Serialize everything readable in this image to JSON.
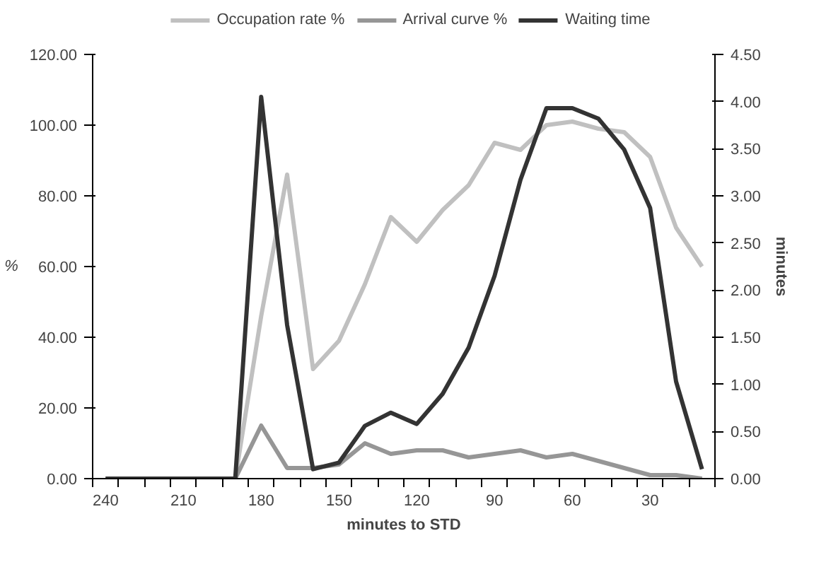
{
  "chart_data": {
    "type": "line",
    "xlabel": "minutes to STD",
    "ylabel": "%",
    "y2label": "minutes",
    "categories": [
      "240",
      null,
      null,
      "210",
      null,
      null,
      "180",
      null,
      null,
      "150",
      null,
      null,
      "120",
      null,
      null,
      "90",
      null,
      null,
      "60",
      null,
      null,
      "30",
      null,
      null
    ],
    "series": [
      {
        "name": "Occupation rate %",
        "color": "#c0c0c0",
        "values": [
          0,
          0,
          0,
          0,
          0,
          0,
          46,
          86,
          31,
          39,
          55,
          74,
          67,
          76,
          83,
          95,
          93,
          100,
          101,
          99,
          98,
          91,
          71,
          60
        ]
      },
      {
        "name": "Arrival curve %",
        "color": "#969696",
        "values": [
          0,
          0,
          0,
          0,
          0,
          0,
          15,
          3,
          3,
          4,
          10,
          7,
          8,
          8,
          6,
          7,
          8,
          6,
          7,
          5,
          3,
          1,
          1,
          0
        ]
      },
      {
        "name": "Waiting time",
        "color": "#333333",
        "axis": "y2",
        "values": [
          0,
          0,
          0,
          0,
          0,
          0,
          4.05,
          1.63,
          0.1,
          0.17,
          0.56,
          0.7,
          0.58,
          0.9,
          1.39,
          2.15,
          3.17,
          3.93,
          3.93,
          3.82,
          3.49,
          2.87,
          1.03,
          0.1
        ]
      }
    ],
    "ylim": [
      0,
      120
    ],
    "yticks": [
      {
        "value": 0,
        "label": "0.00"
      },
      {
        "value": 20,
        "label": "20.00"
      },
      {
        "value": 40,
        "label": "40.00"
      },
      {
        "value": 60,
        "label": "60.00"
      },
      {
        "value": 80,
        "label": "80.00"
      },
      {
        "value": 100,
        "label": "100.00"
      },
      {
        "value": 120,
        "label": "120.00"
      }
    ],
    "y2lim": [
      0,
      4.5
    ],
    "y2ticks": [
      {
        "value": 0,
        "label": "0.00"
      },
      {
        "value": 0.5,
        "label": "0.50"
      },
      {
        "value": 1,
        "label": "1.00"
      },
      {
        "value": 1.5,
        "label": "1.50"
      },
      {
        "value": 2,
        "label": "2.00"
      },
      {
        "value": 2.5,
        "label": "2.50"
      },
      {
        "value": 3,
        "label": "3.00"
      },
      {
        "value": 3.5,
        "label": "3.50"
      },
      {
        "value": 4,
        "label": "4.00"
      },
      {
        "value": 4.5,
        "label": "4.50"
      }
    ],
    "grid": false,
    "legend": "top",
    "marker": "none",
    "line_style": "solid"
  }
}
